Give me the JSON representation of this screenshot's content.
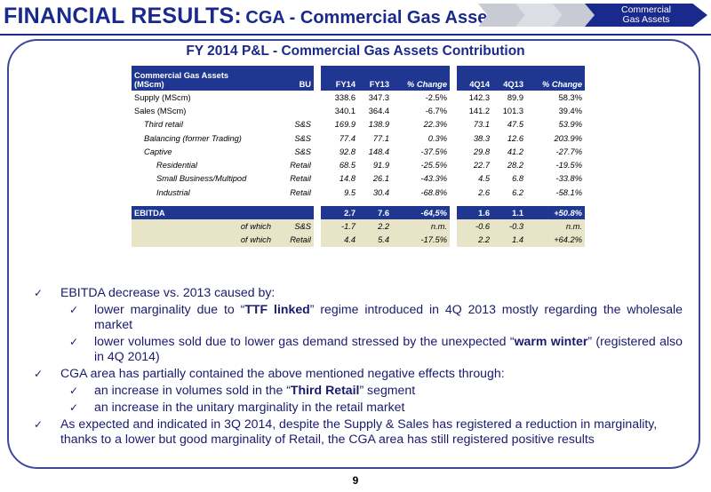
{
  "header": {
    "title_main": "FINANCIAL RESULTS:",
    "title_sub": "CGA - Commercial Gas Assets",
    "nav_active_line1": "Commercial",
    "nav_active_line2": "Gas Assets"
  },
  "panel": {
    "title": "FY 2014 P&L - Commercial Gas Assets Contribution"
  },
  "table": {
    "header": {
      "label_line1": "Commercial Gas Assets",
      "label_line2": "(MScm)",
      "bu": "BU",
      "fy14": "FY14",
      "fy13": "FY13",
      "pct1": "% Change",
      "q414": "4Q14",
      "q413": "4Q13",
      "pct2": "% Change"
    },
    "rows": [
      {
        "label": "Supply (MScm)",
        "bu": "",
        "fy14": "338.6",
        "fy13": "347.3",
        "pct1": "-2.5%",
        "q414": "142.3",
        "q413": "89.9",
        "pct2": "58.3%"
      },
      {
        "label": "Sales (MScm)",
        "bu": "",
        "fy14": "340.1",
        "fy13": "364.4",
        "pct1": "-6.7%",
        "q414": "141.2",
        "q413": "101.3",
        "pct2": "39.4%"
      },
      {
        "label": "Third retail",
        "bu": "S&S",
        "fy14": "169.9",
        "fy13": "138.9",
        "pct1": "22.3%",
        "q414": "73.1",
        "q413": "47.5",
        "pct2": "53.9%"
      },
      {
        "label": "Balancing (former Trading)",
        "bu": "S&S",
        "fy14": "77.4",
        "fy13": "77.1",
        "pct1": "0.3%",
        "q414": "38.3",
        "q413": "12.6",
        "pct2": "203.9%"
      },
      {
        "label": "Captive",
        "bu": "S&S",
        "fy14": "92.8",
        "fy13": "148.4",
        "pct1": "-37.5%",
        "q414": "29.8",
        "q413": "41.2",
        "pct2": "-27.7%"
      },
      {
        "label": "Residential",
        "bu": "Retail",
        "fy14": "68.5",
        "fy13": "91.9",
        "pct1": "-25.5%",
        "q414": "22.7",
        "q413": "28.2",
        "pct2": "-19.5%"
      },
      {
        "label": "Small Business/Multipod",
        "bu": "Retail",
        "fy14": "14.8",
        "fy13": "26.1",
        "pct1": "-43.3%",
        "q414": "4.5",
        "q413": "6.8",
        "pct2": "-33.8%"
      },
      {
        "label": "Industrial",
        "bu": "Retail",
        "fy14": "9.5",
        "fy13": "30.4",
        "pct1": "-68.8%",
        "q414": "2.6",
        "q413": "6.2",
        "pct2": "-58.1%"
      }
    ],
    "ebitda": {
      "label": "EBITDA",
      "fy14": "2.7",
      "fy13": "7.6",
      "pct1": "-64,5%",
      "q414": "1.6",
      "q413": "1.1",
      "pct2": "+50.8%"
    },
    "ebitda_sub": [
      {
        "label": "of which",
        "bu": "S&S",
        "fy14": "-1.7",
        "fy13": "2.2",
        "pct1": "n.m.",
        "q414": "-0.6",
        "q413": "-0.3",
        "pct2": "n.m."
      },
      {
        "label": "of which",
        "bu": "Retail",
        "fy14": "4.4",
        "fy13": "5.4",
        "pct1": "-17.5%",
        "q414": "2.2",
        "q413": "1.4",
        "pct2": "+64.2%"
      }
    ]
  },
  "bullets": {
    "b1": "EBITDA decrease vs. 2013 caused by:",
    "b1a_pre": "lower marginality due to “",
    "b1a_hl": "TTF linked",
    "b1a_post": "” regime introduced in 4Q 2013 mostly regarding the wholesale market",
    "b1b_pre": "lower volumes sold due to lower gas demand stressed by the unexpected “",
    "b1b_hl": "warm winter",
    "b1b_post": "” (registered also in 4Q 2014)",
    "b2": "CGA area has partially contained the above mentioned negative effects through:",
    "b2a_pre": "an increase in volumes sold in the “",
    "b2a_hl": "Third Retail",
    "b2a_post": "” segment",
    "b2b": "an increase in the unitary marginality in the retail market",
    "b3": "As expected and indicated in 3Q 2014, despite the Supply & Sales has registered a reduction in marginality, thanks to a lower but good marginality of Retail, the CGA area has still registered positive results"
  },
  "footer": {
    "page_number": "9"
  }
}
